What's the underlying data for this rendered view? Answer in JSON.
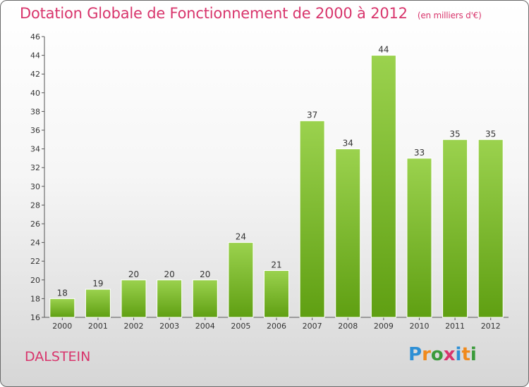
{
  "title": "Dotation Globale de Fonctionnement de 2000 à 2012",
  "subtitle": "(en milliers d'€)",
  "commune": "DALSTEIN",
  "logo": {
    "letters": [
      "P",
      "r",
      "o",
      "x",
      "i",
      "t",
      "i"
    ],
    "colors": [
      "#2d8fd5",
      "#f08a1c",
      "#3a9a3a",
      "#d8356c",
      "#2d8fd5",
      "#f08a1c",
      "#3a9a3a"
    ]
  },
  "colors": {
    "bar_top": "#9bd24e",
    "bar_bottom": "#5f9f12",
    "title": "#d8356c"
  },
  "chart_data": {
    "type": "bar",
    "categories": [
      "2000",
      "2001",
      "2002",
      "2003",
      "2004",
      "2005",
      "2006",
      "2007",
      "2008",
      "2009",
      "2010",
      "2011",
      "2012"
    ],
    "values": [
      18,
      19,
      20,
      20,
      20,
      24,
      21,
      37,
      34,
      44,
      33,
      35,
      35
    ],
    "title": "Dotation Globale de Fonctionnement de 2000 à 2012",
    "xlabel": "",
    "ylabel": "",
    "ylim": [
      16,
      46
    ],
    "yticks": [
      16,
      18,
      20,
      22,
      24,
      26,
      28,
      30,
      32,
      34,
      36,
      38,
      40,
      42,
      44,
      46
    ],
    "grid": false,
    "legend": "none"
  }
}
